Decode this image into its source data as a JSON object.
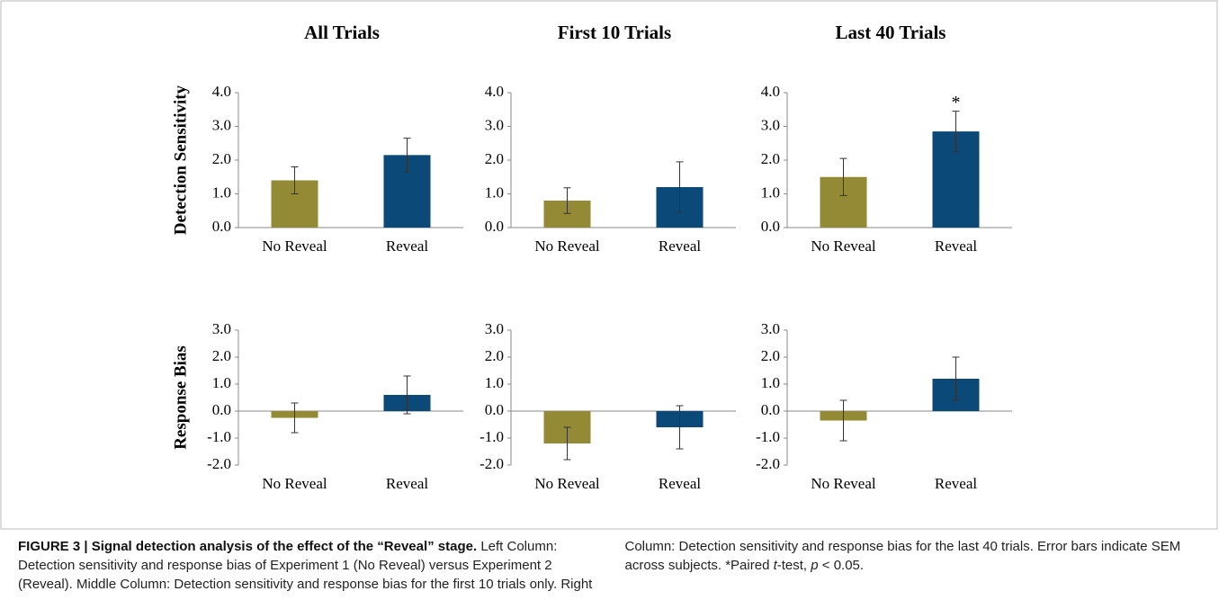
{
  "chart_data": [
    {
      "type": "bar",
      "title": "All Trials",
      "ylabel": "Detection Sensitivity",
      "categories": [
        "No Reveal",
        "Reveal"
      ],
      "values": [
        1.4,
        2.15
      ],
      "errors": [
        0.4,
        0.5
      ],
      "colors": [
        "#948a35",
        "#0b4a78"
      ],
      "ylim": [
        0,
        4
      ],
      "yticks": [
        {
          "value": 0,
          "label": "0.0"
        },
        {
          "value": 1,
          "label": "1.0"
        },
        {
          "value": 2,
          "label": "2.0"
        },
        {
          "value": 3,
          "label": "3.0"
        },
        {
          "value": 4,
          "label": "4.0"
        }
      ]
    },
    {
      "type": "bar",
      "title": "First 10 Trials",
      "categories": [
        "No Reveal",
        "Reveal"
      ],
      "values": [
        0.8,
        1.2
      ],
      "errors": [
        0.38,
        0.75
      ],
      "colors": [
        "#948a35",
        "#0b4a78"
      ],
      "ylim": [
        0,
        4
      ],
      "yticks": [
        {
          "value": 0,
          "label": "0.0"
        },
        {
          "value": 1,
          "label": "1.0"
        },
        {
          "value": 2,
          "label": "2.0"
        },
        {
          "value": 3,
          "label": "3.0"
        },
        {
          "value": 4,
          "label": "4.0"
        }
      ]
    },
    {
      "type": "bar",
      "title": "Last 40 Trials",
      "categories": [
        "No Reveal",
        "Reveal"
      ],
      "values": [
        1.5,
        2.85
      ],
      "errors": [
        0.55,
        0.6
      ],
      "colors": [
        "#948a35",
        "#0b4a78"
      ],
      "ylim": [
        0,
        4
      ],
      "yticks": [
        {
          "value": 0,
          "label": "0.0"
        },
        {
          "value": 1,
          "label": "1.0"
        },
        {
          "value": 2,
          "label": "2.0"
        },
        {
          "value": 3,
          "label": "3.0"
        },
        {
          "value": 4,
          "label": "4.0"
        }
      ],
      "annotations": [
        {
          "text": "*",
          "category": "Reveal"
        }
      ]
    },
    {
      "type": "bar",
      "ylabel": "Response Bias",
      "categories": [
        "No Reveal",
        "Reveal"
      ],
      "values": [
        -0.25,
        0.6
      ],
      "errors": [
        0.55,
        0.7
      ],
      "colors": [
        "#948a35",
        "#0b4a78"
      ],
      "ylim": [
        -2,
        3
      ],
      "yticks": [
        {
          "value": -2,
          "label": "-2.0"
        },
        {
          "value": -1,
          "label": "-1.0"
        },
        {
          "value": 0,
          "label": "0.0"
        },
        {
          "value": 1,
          "label": "1.0"
        },
        {
          "value": 2,
          "label": "2.0"
        },
        {
          "value": 3,
          "label": "3.0"
        }
      ]
    },
    {
      "type": "bar",
      "categories": [
        "No Reveal",
        "Reveal"
      ],
      "values": [
        -1.2,
        -0.6
      ],
      "errors": [
        0.6,
        0.8
      ],
      "colors": [
        "#948a35",
        "#0b4a78"
      ],
      "ylim": [
        -2,
        3
      ],
      "yticks": [
        {
          "value": -2,
          "label": "-2.0"
        },
        {
          "value": -1,
          "label": "-1.0"
        },
        {
          "value": 0,
          "label": "0.0"
        },
        {
          "value": 1,
          "label": "1.0"
        },
        {
          "value": 2,
          "label": "2.0"
        },
        {
          "value": 3,
          "label": "3.0"
        }
      ]
    },
    {
      "type": "bar",
      "categories": [
        "No Reveal",
        "Reveal"
      ],
      "values": [
        -0.35,
        1.2
      ],
      "errors": [
        0.75,
        0.8
      ],
      "colors": [
        "#948a35",
        "#0b4a78"
      ],
      "ylim": [
        -2,
        3
      ],
      "yticks": [
        {
          "value": -2,
          "label": "-2.0"
        },
        {
          "value": -1,
          "label": "-1.0"
        },
        {
          "value": 0,
          "label": "0.0"
        },
        {
          "value": 1,
          "label": "1.0"
        },
        {
          "value": 2,
          "label": "2.0"
        },
        {
          "value": 3,
          "label": "3.0"
        }
      ]
    }
  ],
  "caption": {
    "label": "FIGURE 3 | Signal detection analysis of the effect of the “Reveal” stage.",
    "segments": [
      {
        "text": " Left Column: Detection sensitivity and response bias of Experiment 1 (No Reveal) versus Experiment 2 (Reveal). Middle Column: Detection sensitivity and response bias for the first 10 trials only. Right Column: Detection sensitivity and response bias for the last 40 trials. Error bars indicate SEM across subjects. *Paired "
      },
      {
        "text": "t",
        "italic": true
      },
      {
        "text": "-test, "
      },
      {
        "text": "p",
        "italic": true
      },
      {
        "text": " < 0.05."
      }
    ]
  }
}
